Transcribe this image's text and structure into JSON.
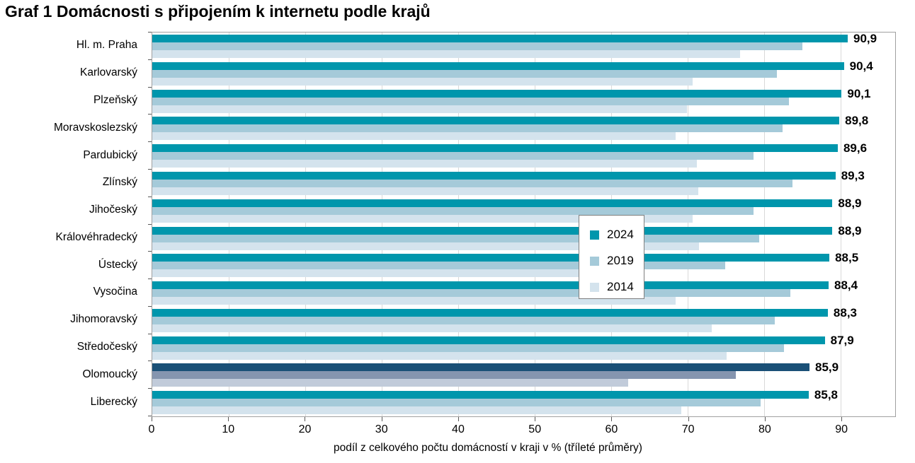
{
  "title": "Graf 1 Domácnosti s připojením k internetu podle krajů",
  "chart_data": {
    "type": "bar",
    "orientation": "horizontal",
    "title": "Graf 1 Domácnosti s připojením k internetu podle krajů",
    "xlabel": "podíl z celkového počtu domácností v kraji v % (tříleté průměry)",
    "xlim": [
      0,
      97.1
    ],
    "xticks": [
      0,
      10,
      20,
      30,
      40,
      50,
      60,
      70,
      80,
      90
    ],
    "grid": "vertical",
    "legend_position": "overlay-center",
    "categories": [
      "Hl. m. Praha",
      "Karlovarský",
      "Plzeňský",
      "Moravskoslezský",
      "Pardubický",
      "Zlínský",
      "Jihočeský",
      "Královéhradecký",
      "Ústecký",
      "Vysočina",
      "Jihomoravský",
      "Středočeský",
      "Olomoucký",
      "Liberecký"
    ],
    "series": [
      {
        "name": "2024",
        "values": [
          90.9,
          90.4,
          90.1,
          89.8,
          89.6,
          89.3,
          88.9,
          88.9,
          88.5,
          88.4,
          88.3,
          87.9,
          85.9,
          85.8
        ],
        "labels": [
          "90,9",
          "90,4",
          "90,1",
          "89,8",
          "89,6",
          "89,3",
          "88,9",
          "88,9",
          "88,5",
          "88,4",
          "88,3",
          "87,9",
          "85,9",
          "85,8"
        ],
        "color": "#0096AC"
      },
      {
        "name": "2019",
        "values": [
          85.0,
          81.6,
          83.2,
          82.4,
          78.6,
          83.7,
          78.6,
          79.3,
          74.9,
          83.4,
          81.4,
          82.6,
          76.3,
          79.5
        ],
        "color": "#A5CAD9"
      },
      {
        "name": "2014",
        "values": [
          76.8,
          70.6,
          69.9,
          68.4,
          71.2,
          71.4,
          70.6,
          71.5,
          63.1,
          68.4,
          73.1,
          75.1,
          62.2,
          69.1
        ],
        "color": "#D4E3ED"
      }
    ],
    "highlight": {
      "category": "Olomoucký",
      "index": 12,
      "colors": {
        "2024": "#1A5077",
        "2019": "#8595AF",
        "2014": "#C1CBDA"
      }
    }
  },
  "legend": {
    "items": [
      "2024",
      "2019",
      "2014"
    ]
  }
}
